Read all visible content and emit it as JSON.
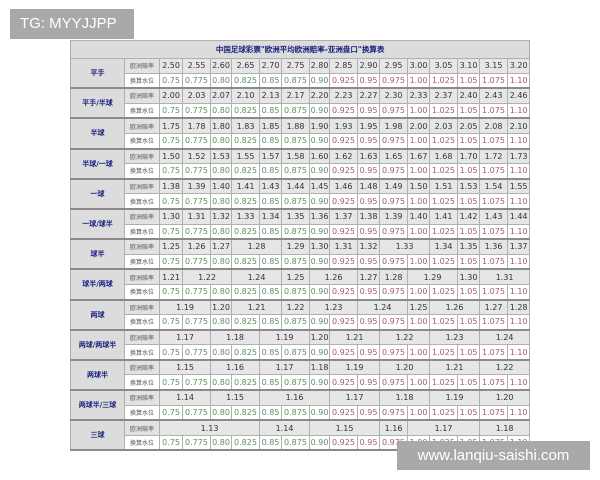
{
  "watermark_top": "TG: MYYJJPP",
  "watermark_bottom": "www.lanqiu-saishi.com",
  "table": {
    "title": "中国足球彩票\"欧洲平均欧洲赔率-亚洲盘口\"换算表",
    "odds_label": "欧洲赔率",
    "water_label": "换算水位",
    "water_levels": [
      "0.75",
      "0.775",
      "0.80",
      "0.825",
      "0.85",
      "0.875",
      "0.90",
      "0.925",
      "0.95",
      "0.975",
      "1.00",
      "1.025",
      "1.05",
      "1.075",
      "1.10"
    ],
    "colors": {
      "water_low": "#5f8f5f",
      "water_high": "#a35a78",
      "label": "#1a237e"
    },
    "rows": [
      {
        "handicap": "平手",
        "odds": [
          [
            "2.50",
            1
          ],
          [
            "2.55",
            1
          ],
          [
            "2.60",
            1
          ],
          [
            "2.65",
            1
          ],
          [
            "2.70",
            1
          ],
          [
            "2.75",
            1
          ],
          [
            "2.80",
            1
          ],
          [
            "2.85",
            1
          ],
          [
            "2.90",
            1
          ],
          [
            "2.95",
            1
          ],
          [
            "3.00",
            1
          ],
          [
            "3.05",
            1
          ],
          [
            "3.10",
            1
          ],
          [
            "3.15",
            1
          ],
          [
            "3.20",
            1
          ]
        ]
      },
      {
        "handicap": "平手/半球",
        "odds": [
          [
            "2.00",
            1
          ],
          [
            "2.03",
            1
          ],
          [
            "2.07",
            1
          ],
          [
            "2.10",
            1
          ],
          [
            "2.13",
            1
          ],
          [
            "2.17",
            1
          ],
          [
            "2.20",
            1
          ],
          [
            "2.23",
            1
          ],
          [
            "2.27",
            1
          ],
          [
            "2.30",
            1
          ],
          [
            "2.33",
            1
          ],
          [
            "2.37",
            1
          ],
          [
            "2.40",
            1
          ],
          [
            "2.43",
            1
          ],
          [
            "2.46",
            1
          ]
        ]
      },
      {
        "handicap": "半球",
        "odds": [
          [
            "1.75",
            1
          ],
          [
            "1.78",
            1
          ],
          [
            "1.80",
            1
          ],
          [
            "1.83",
            1
          ],
          [
            "1.85",
            1
          ],
          [
            "1.88",
            1
          ],
          [
            "1.90",
            1
          ],
          [
            "1.93",
            1
          ],
          [
            "1.95",
            1
          ],
          [
            "1.98",
            1
          ],
          [
            "2.00",
            1
          ],
          [
            "2.03",
            1
          ],
          [
            "2.05",
            1
          ],
          [
            "2.08",
            1
          ],
          [
            "2.10",
            1
          ]
        ]
      },
      {
        "handicap": "半球/一球",
        "odds": [
          [
            "1.50",
            1
          ],
          [
            "1.52",
            1
          ],
          [
            "1.53",
            1
          ],
          [
            "1.55",
            1
          ],
          [
            "1.57",
            1
          ],
          [
            "1.58",
            1
          ],
          [
            "1.60",
            1
          ],
          [
            "1.62",
            1
          ],
          [
            "1.63",
            1
          ],
          [
            "1.65",
            1
          ],
          [
            "1.67",
            1
          ],
          [
            "1.68",
            1
          ],
          [
            "1.70",
            1
          ],
          [
            "1.72",
            1
          ],
          [
            "1.73",
            1
          ]
        ]
      },
      {
        "handicap": "一球",
        "odds": [
          [
            "1.38",
            1
          ],
          [
            "1.39",
            1
          ],
          [
            "1.40",
            1
          ],
          [
            "1.41",
            1
          ],
          [
            "1.43",
            1
          ],
          [
            "1.44",
            1
          ],
          [
            "1.45",
            1
          ],
          [
            "1.46",
            1
          ],
          [
            "1.48",
            1
          ],
          [
            "1.49",
            1
          ],
          [
            "1.50",
            1
          ],
          [
            "1.51",
            1
          ],
          [
            "1.53",
            1
          ],
          [
            "1.54",
            1
          ],
          [
            "1.55",
            1
          ]
        ]
      },
      {
        "handicap": "一球/球半",
        "odds": [
          [
            "1.30",
            1
          ],
          [
            "1.31",
            1
          ],
          [
            "1.32",
            1
          ],
          [
            "1.33",
            1
          ],
          [
            "1.34",
            1
          ],
          [
            "1.35",
            1
          ],
          [
            "1.36",
            1
          ],
          [
            "1.37",
            1
          ],
          [
            "1.38",
            1
          ],
          [
            "1.39",
            1
          ],
          [
            "1.40",
            1
          ],
          [
            "1.41",
            1
          ],
          [
            "1.42",
            1
          ],
          [
            "1.43",
            1
          ],
          [
            "1.44",
            1
          ]
        ]
      },
      {
        "handicap": "球半",
        "odds": [
          [
            "1.25",
            1
          ],
          [
            "1.26",
            1
          ],
          [
            "1.27",
            1
          ],
          [
            "1.28",
            2
          ],
          [
            "1.29",
            1
          ],
          [
            "1.30",
            1
          ],
          [
            "1.31",
            1
          ],
          [
            "1.32",
            1
          ],
          [
            "1.33",
            2
          ],
          [
            "1.34",
            1
          ],
          [
            "1.35",
            1
          ],
          [
            "1.36",
            1
          ],
          [
            "1.37",
            1
          ]
        ]
      },
      {
        "handicap": "球半/两球",
        "odds": [
          [
            "1.21",
            1
          ],
          [
            "1.22",
            2
          ],
          [
            "1.24",
            2
          ],
          [
            "1.25",
            1
          ],
          [
            "1.26",
            2
          ],
          [
            "1.27",
            1
          ],
          [
            "1.28",
            1
          ],
          [
            "1.29",
            2
          ],
          [
            "1.30",
            1
          ],
          [
            "1.31",
            2
          ]
        ]
      },
      {
        "handicap": "两球",
        "odds": [
          [
            "1.19",
            2
          ],
          [
            "1.20",
            1
          ],
          [
            "1.21",
            2
          ],
          [
            "1.22",
            1
          ],
          [
            "1.23",
            2
          ],
          [
            "1.24",
            2
          ],
          [
            "1.25",
            1
          ],
          [
            "1.26",
            2
          ],
          [
            "1.27",
            1
          ],
          [
            "1.28",
            1
          ]
        ]
      },
      {
        "handicap": "两球/两球半",
        "odds": [
          [
            "1.17",
            2
          ],
          [
            "1.18",
            2
          ],
          [
            "1.19",
            2
          ],
          [
            "1.20",
            1
          ],
          [
            "1.21",
            2
          ],
          [
            "1.22",
            2
          ],
          [
            "1.23",
            2
          ],
          [
            "1.24",
            2
          ]
        ]
      },
      {
        "handicap": "两球半",
        "odds": [
          [
            "1.15",
            2
          ],
          [
            "1.16",
            2
          ],
          [
            "1.17",
            2
          ],
          [
            "1.18",
            1
          ],
          [
            "1.19",
            2
          ],
          [
            "1.20",
            2
          ],
          [
            "1.21",
            2
          ],
          [
            "1.22",
            2
          ]
        ]
      },
      {
        "handicap": "两球半/三球",
        "odds": [
          [
            "1.14",
            2
          ],
          [
            "1.15",
            2
          ],
          [
            "1.16",
            3
          ],
          [
            "1.17",
            2
          ],
          [
            "1.18",
            2
          ],
          [
            "1.19",
            2
          ],
          [
            "1.20",
            2
          ]
        ]
      },
      {
        "handicap": "三球",
        "odds": [
          [
            "1.13",
            4
          ],
          [
            "1.14",
            2
          ],
          [
            "1.15",
            3
          ],
          [
            "1.16",
            1
          ],
          [
            "1.17",
            3
          ],
          [
            "1.18",
            2
          ]
        ]
      }
    ]
  }
}
